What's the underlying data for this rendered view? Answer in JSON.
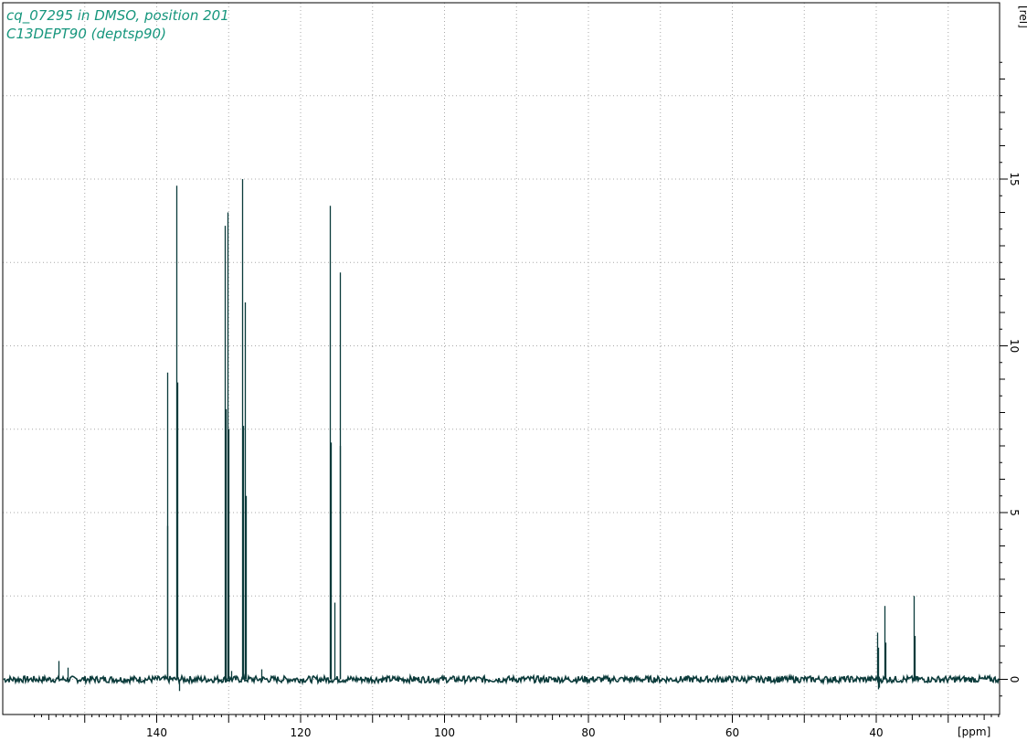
{
  "header": {
    "line1": "cq_07295 in DMSO, position 201",
    "line2": "C13DEPT90 (deptsp90)"
  },
  "colors": {
    "title": "#16967d",
    "spectrum": "#0b3b3b",
    "grid": "#a8a8a8",
    "frame": "#000000"
  },
  "chart_data": {
    "type": "line",
    "title": "cq_07295 in DMSO, position 201",
    "subtitle": "C13DEPT90 (deptsp90)",
    "xlabel": "[ppm]",
    "ylabel": "[rel]",
    "x_reversed": true,
    "xlim": [
      157.5,
      17.5
    ],
    "ylim": [
      -1,
      19
    ],
    "xticks": [
      140,
      120,
      100,
      80,
      60,
      40
    ],
    "yticks": [
      0,
      5,
      10,
      15
    ],
    "grid": true,
    "baseline_noise": 0.1,
    "peaks": [
      {
        "ppm": 153.6,
        "height": 0.55
      },
      {
        "ppm": 152.4,
        "height": 0.35
      },
      {
        "ppm": 138.6,
        "height": 4.6
      },
      {
        "ppm": 138.5,
        "height": 9.2
      },
      {
        "ppm": 137.3,
        "height": 14.8
      },
      {
        "ppm": 137.2,
        "height": 8.9
      },
      {
        "ppm": 136.9,
        "height": -0.35
      },
      {
        "ppm": 130.5,
        "height": 13.6
      },
      {
        "ppm": 130.4,
        "height": 8.1
      },
      {
        "ppm": 130.1,
        "height": 14.0
      },
      {
        "ppm": 130.0,
        "height": 7.5
      },
      {
        "ppm": 129.6,
        "height": 0.25
      },
      {
        "ppm": 128.1,
        "height": 15.0
      },
      {
        "ppm": 128.0,
        "height": 7.6
      },
      {
        "ppm": 127.7,
        "height": 11.3
      },
      {
        "ppm": 127.6,
        "height": 5.5
      },
      {
        "ppm": 125.5,
        "height": 0.3
      },
      {
        "ppm": 115.9,
        "height": 14.2
      },
      {
        "ppm": 115.8,
        "height": 7.1
      },
      {
        "ppm": 115.3,
        "height": 2.3
      },
      {
        "ppm": 114.6,
        "height": 12.2
      },
      {
        "ppm": 114.5,
        "height": 7.0
      },
      {
        "ppm": 39.9,
        "height": 1.4
      },
      {
        "ppm": 39.8,
        "height": -0.3
      },
      {
        "ppm": 39.7,
        "height": 0.95
      },
      {
        "ppm": 39.6,
        "height": -0.25
      },
      {
        "ppm": 38.8,
        "height": 2.2
      },
      {
        "ppm": 38.7,
        "height": 1.1
      },
      {
        "ppm": 34.8,
        "height": 2.5
      },
      {
        "ppm": 34.7,
        "height": 1.3
      }
    ]
  }
}
